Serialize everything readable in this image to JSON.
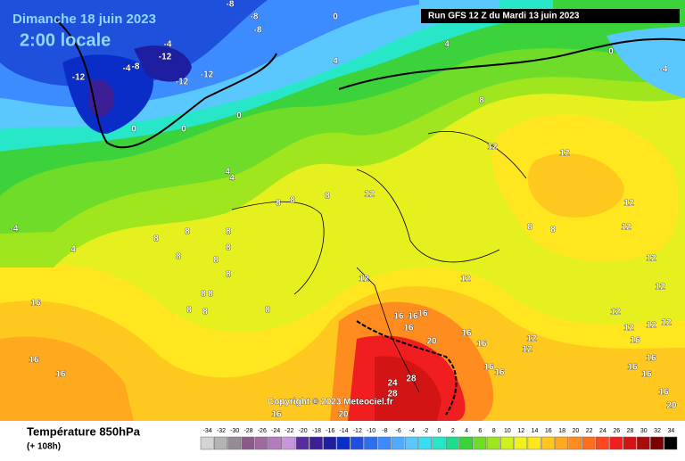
{
  "title": "Dimanche 18 juin 2023",
  "subtitle": "2:00 locale",
  "run": "Run GFS 12 Z du Mardi 13 juin 2023",
  "copyright": "Copyright © 2023 Meteociel.fr",
  "footer": {
    "title": "Température 850hPa",
    "lead": "(+ 108h)"
  },
  "scale": {
    "labels": [
      -34,
      -32,
      -30,
      -28,
      -26,
      -24,
      -22,
      -20,
      -18,
      -16,
      -14,
      -12,
      -10,
      -8,
      -6,
      -4,
      -2,
      0,
      2,
      4,
      6,
      8,
      10,
      12,
      14,
      16,
      18,
      20,
      22,
      24,
      26,
      28,
      30,
      32,
      34
    ],
    "colors": [
      "#d4d4d4",
      "#b4b4b4",
      "#968a96",
      "#8a5a8a",
      "#9e6aa0",
      "#b27cbe",
      "#c896dc",
      "#5a2d9e",
      "#3c1e96",
      "#1e1ea0",
      "#0a2dc8",
      "#1e50dc",
      "#2d6ef0",
      "#3c8cff",
      "#50aaff",
      "#5ac8ff",
      "#3cdcf0",
      "#28e6c8",
      "#1edc8c",
      "#3cd23c",
      "#6edc28",
      "#a0e61e",
      "#d2f01e",
      "#f0f01e",
      "#ffe61e",
      "#ffc81e",
      "#ffaa1e",
      "#ff8c1e",
      "#ff6e1e",
      "#ff461e",
      "#f01e1e",
      "#d21414",
      "#aa0a0a",
      "#7a0000",
      "#000000"
    ]
  },
  "map_labels": [
    -8,
    -8,
    -8,
    0,
    -4,
    -12,
    -4,
    -8,
    -12,
    -12,
    -12,
    4,
    4,
    0,
    -4,
    0,
    0,
    0,
    8,
    12,
    12,
    4,
    4,
    8,
    8,
    8,
    12,
    -4,
    4,
    8,
    8,
    8,
    8,
    8,
    8,
    8,
    8,
    8,
    8,
    8,
    8,
    12,
    12,
    12,
    12,
    12,
    12,
    8,
    8,
    16,
    16,
    16,
    16,
    16,
    20,
    16,
    16,
    16,
    16,
    12,
    12,
    12,
    12,
    12,
    12,
    16,
    16,
    16,
    16,
    16,
    20,
    16,
    16,
    24,
    28,
    28,
    16,
    20
  ]
}
